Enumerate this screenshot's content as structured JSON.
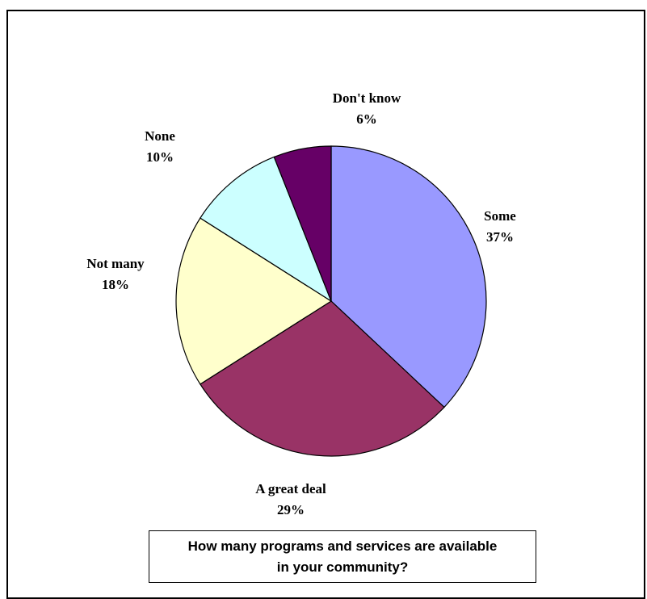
{
  "chart_data": {
    "type": "pie",
    "title": "How many programs and services are available in your community?",
    "slices": [
      {
        "label": "Some",
        "value": 37,
        "display": "37%",
        "color": "#9999ff"
      },
      {
        "label": "A great deal",
        "value": 29,
        "display": "29%",
        "color": "#993366"
      },
      {
        "label": "Not many",
        "value": 18,
        "display": "18%",
        "color": "#ffffcc"
      },
      {
        "label": "None",
        "value": 10,
        "display": "10%",
        "color": "#ccffff"
      },
      {
        "label": "Don't know",
        "value": 6,
        "display": "6%",
        "color": "#660066"
      }
    ],
    "start": "12 o'clock",
    "direction": "clockwise",
    "legend": "none"
  }
}
